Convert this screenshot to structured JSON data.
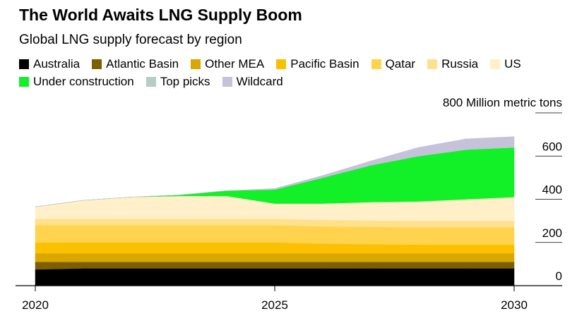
{
  "title": "The World Awaits LNG Supply Boom",
  "subtitle": "Global LNG supply forecast by region",
  "colors": {
    "Australia": "#000000",
    "Atlantic Basin": "#7d5f00",
    "Other MEA": "#d9a700",
    "Pacific Basin": "#fbc100",
    "Qatar": "#ffd34d",
    "Russia": "#ffe18c",
    "US": "#fff0c9",
    "Under construction": "#12f028",
    "Top picks": "#b4cec7",
    "Wildcard": "#c5c2d9"
  },
  "chart_data": {
    "type": "area",
    "stacked": true,
    "title": "The World Awaits LNG Supply Boom",
    "subtitle": "Global LNG supply forecast by region",
    "unit_label": "800 Million metric tons",
    "x": [
      2020,
      2021,
      2022,
      2023,
      2024,
      2025,
      2026,
      2027,
      2028,
      2029,
      2030
    ],
    "xticks": [
      "2020",
      "2025",
      "2030"
    ],
    "yticks": [
      "0",
      "200",
      "400",
      "600"
    ],
    "ylim": [
      0,
      800
    ],
    "y_axis_position": "right",
    "grid": true,
    "legend_position": "top",
    "series": [
      {
        "name": "Australia",
        "values": [
          75,
          80,
          80,
          80,
          80,
          80,
          80,
          80,
          80,
          80,
          80
        ]
      },
      {
        "name": "Atlantic Basin",
        "values": [
          35,
          30,
          30,
          30,
          30,
          30,
          30,
          30,
          30,
          30,
          30
        ]
      },
      {
        "name": "Other MEA",
        "values": [
          40,
          40,
          40,
          40,
          40,
          40,
          40,
          40,
          40,
          40,
          40
        ]
      },
      {
        "name": "Pacific Basin",
        "values": [
          50,
          50,
          50,
          50,
          50,
          50,
          45,
          42,
          40,
          40,
          40
        ]
      },
      {
        "name": "Qatar",
        "values": [
          80,
          80,
          80,
          80,
          80,
          80,
          80,
          80,
          80,
          80,
          80
        ]
      },
      {
        "name": "Russia",
        "values": [
          30,
          30,
          30,
          30,
          30,
          30,
          30,
          30,
          30,
          30,
          30
        ]
      },
      {
        "name": "US",
        "values": [
          55,
          85,
          100,
          105,
          105,
          70,
          75,
          85,
          90,
          100,
          110
        ]
      },
      {
        "name": "Under construction",
        "values": [
          0,
          0,
          0,
          5,
          25,
          65,
          120,
          170,
          210,
          230,
          230
        ]
      },
      {
        "name": "Top picks",
        "values": [
          0,
          0,
          0,
          0,
          0,
          0,
          0,
          0,
          0,
          0,
          0
        ]
      },
      {
        "name": "Wildcard",
        "values": [
          0,
          0,
          0,
          0,
          0,
          5,
          10,
          20,
          40,
          50,
          50
        ]
      }
    ]
  }
}
